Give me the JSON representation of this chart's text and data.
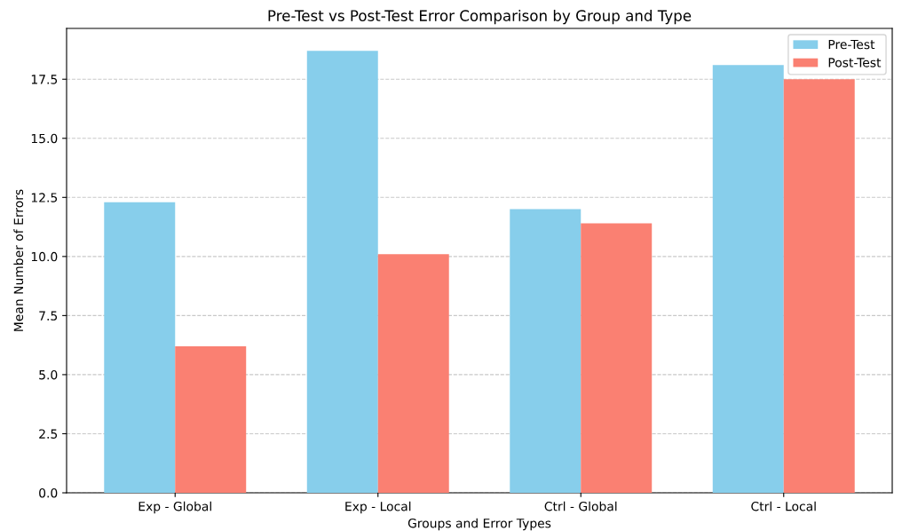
{
  "chart_data": {
    "type": "bar",
    "title": "Pre-Test vs Post-Test Error Comparison by Group and Type",
    "xlabel": "Groups and Error Types",
    "ylabel": "Mean Number of Errors",
    "categories": [
      "Exp - Global",
      "Exp - Local",
      "Ctrl - Global",
      "Ctrl - Local"
    ],
    "series": [
      {
        "name": "Pre-Test",
        "color": "#87ceeb",
        "values": [
          12.3,
          18.7,
          12.0,
          18.1
        ]
      },
      {
        "name": "Post-Test",
        "color": "#fa8072",
        "values": [
          6.2,
          10.1,
          11.4,
          17.5
        ]
      }
    ],
    "ylim": [
      0,
      19.65
    ],
    "yticks": [
      {
        "value": 0,
        "label": "0.0"
      },
      {
        "value": 2.5,
        "label": "2.5"
      },
      {
        "value": 5,
        "label": "5.0"
      },
      {
        "value": 7.5,
        "label": "7.5"
      },
      {
        "value": 10,
        "label": "10.0"
      },
      {
        "value": 12.5,
        "label": "12.5"
      },
      {
        "value": 15,
        "label": "15.0"
      },
      {
        "value": 17.5,
        "label": "17.5"
      }
    ],
    "grid": "y",
    "legend": "top right"
  }
}
